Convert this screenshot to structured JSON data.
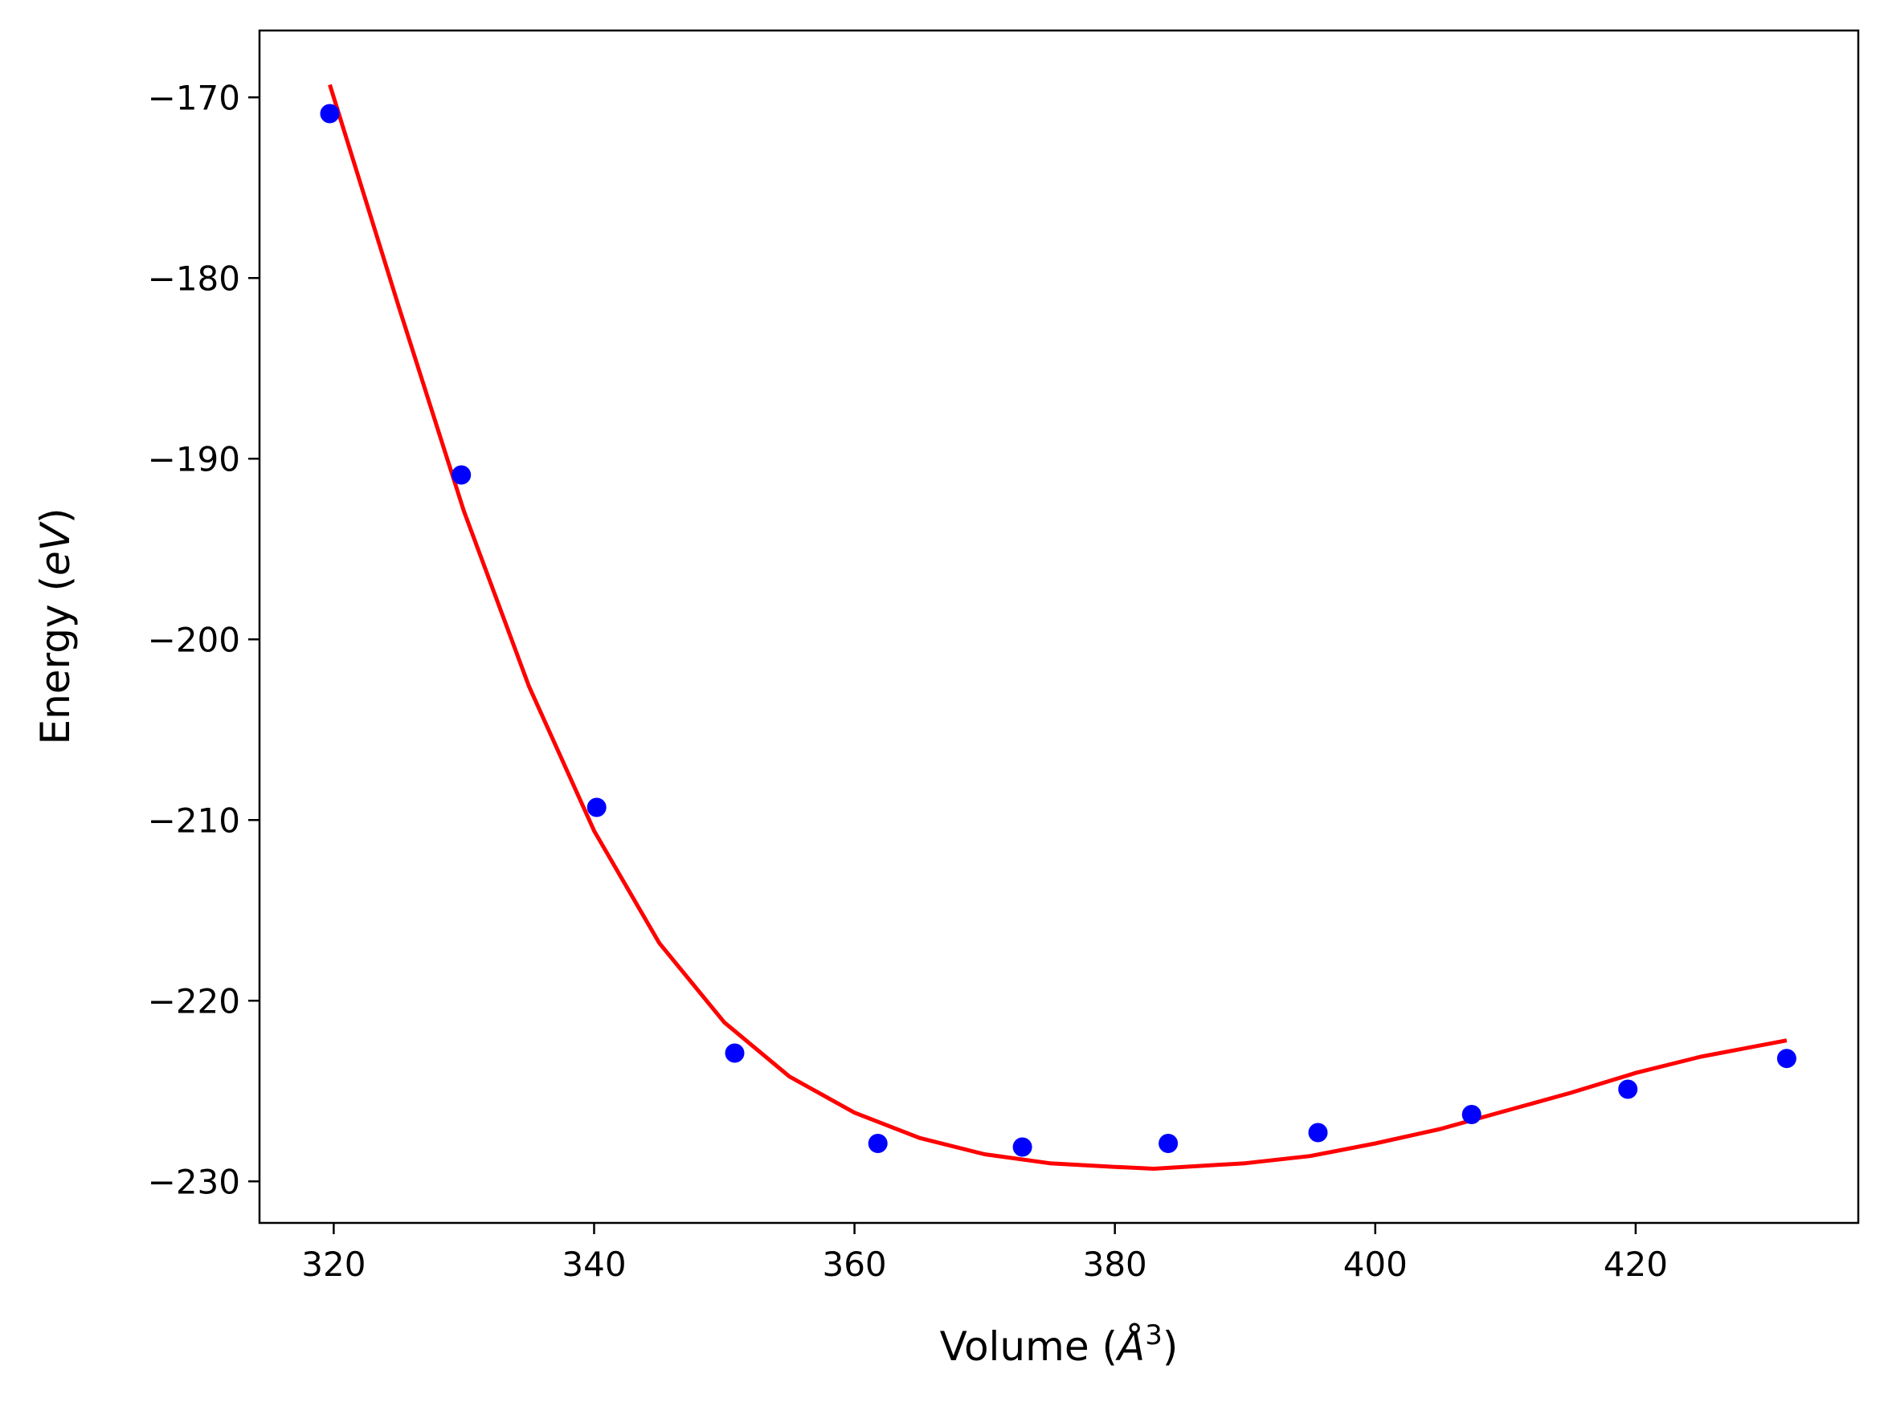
{
  "chart_data": {
    "type": "scatter",
    "xlabel": "Volume (Å³)",
    "xlabel_parts": {
      "prefix": "Volume (",
      "unit": "Å",
      "sup": "3",
      "suffix": ")"
    },
    "ylabel": "Energy (eV)",
    "ylabel_parts": {
      "prefix": "Energy (",
      "unit": "eV",
      "suffix": ")"
    },
    "xlim": [
      314.3,
      437.1
    ],
    "ylim": [
      -232.3,
      -166.3
    ],
    "x_ticks": [
      320,
      340,
      360,
      380,
      400,
      420
    ],
    "x_tick_labels": [
      "320",
      "340",
      "360",
      "380",
      "400",
      "420"
    ],
    "y_ticks": [
      -170,
      -180,
      -190,
      -200,
      -210,
      -220,
      -230
    ],
    "y_tick_labels": [
      "−170",
      "−180",
      "−190",
      "−200",
      "−210",
      "−220",
      "−230"
    ],
    "grid": false,
    "legend": "none",
    "series": [
      {
        "kind": "scatter",
        "color": "#0000ff",
        "points": [
          {
            "x": 319.7,
            "y": -170.9
          },
          {
            "x": 329.8,
            "y": -190.9
          },
          {
            "x": 340.2,
            "y": -209.3
          },
          {
            "x": 350.8,
            "y": -222.9
          },
          {
            "x": 361.8,
            "y": -227.9
          },
          {
            "x": 372.9,
            "y": -228.1
          },
          {
            "x": 384.1,
            "y": -227.9
          },
          {
            "x": 395.6,
            "y": -227.3
          },
          {
            "x": 407.4,
            "y": -226.3
          },
          {
            "x": 419.4,
            "y": -224.9
          },
          {
            "x": 431.6,
            "y": -223.2
          }
        ]
      },
      {
        "kind": "line",
        "color": "#ff0000",
        "points": [
          {
            "x": 319.7,
            "y": -169.3
          },
          {
            "x": 325.0,
            "y": -181.6
          },
          {
            "x": 330.0,
            "y": -192.9
          },
          {
            "x": 335.0,
            "y": -202.6
          },
          {
            "x": 340.0,
            "y": -210.6
          },
          {
            "x": 345.0,
            "y": -216.8
          },
          {
            "x": 350.0,
            "y": -221.2
          },
          {
            "x": 355.0,
            "y": -224.2
          },
          {
            "x": 360.0,
            "y": -226.2
          },
          {
            "x": 365.0,
            "y": -227.6
          },
          {
            "x": 370.0,
            "y": -228.5
          },
          {
            "x": 375.0,
            "y": -229.0
          },
          {
            "x": 380.0,
            "y": -229.2
          },
          {
            "x": 383.0,
            "y": -229.3
          },
          {
            "x": 390.0,
            "y": -229.0
          },
          {
            "x": 395.0,
            "y": -228.6
          },
          {
            "x": 400.0,
            "y": -227.9
          },
          {
            "x": 405.0,
            "y": -227.1
          },
          {
            "x": 410.0,
            "y": -226.1
          },
          {
            "x": 415.0,
            "y": -225.1
          },
          {
            "x": 420.0,
            "y": -224.0
          },
          {
            "x": 425.0,
            "y": -223.1
          },
          {
            "x": 431.6,
            "y": -222.2
          }
        ]
      }
    ]
  }
}
